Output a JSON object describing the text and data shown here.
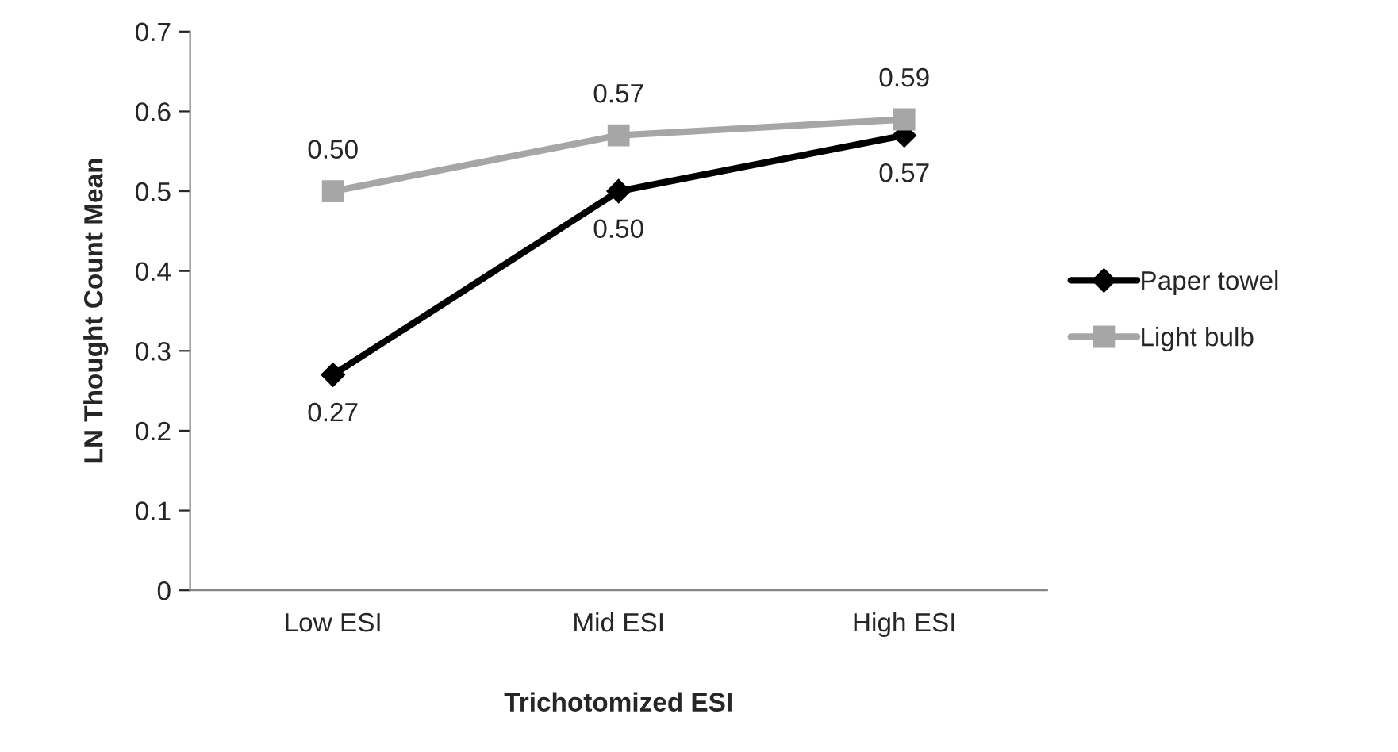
{
  "chart_data": {
    "type": "line",
    "xlabel": "Trichotomized ESI",
    "ylabel": "LN Thought Count Mean",
    "categories": [
      "Low ESI",
      "Mid ESI",
      "High ESI"
    ],
    "series": [
      {
        "name": "Paper towel",
        "color": "#000000",
        "marker": "diamond",
        "values": [
          0.27,
          0.5,
          0.57
        ],
        "value_labels": [
          "0.27",
          "0.50",
          "0.57"
        ]
      },
      {
        "name": "Light bulb",
        "color": "#a6a6a6",
        "marker": "square",
        "values": [
          0.5,
          0.57,
          0.59
        ],
        "value_labels": [
          "0.50",
          "0.57",
          "0.59"
        ]
      }
    ],
    "ylim": [
      0,
      0.7
    ],
    "yticks": [
      0,
      0.1,
      0.2,
      0.3,
      0.4,
      0.5,
      0.6,
      0.7
    ],
    "grid": false,
    "legend": "right",
    "line_style": "solid"
  }
}
